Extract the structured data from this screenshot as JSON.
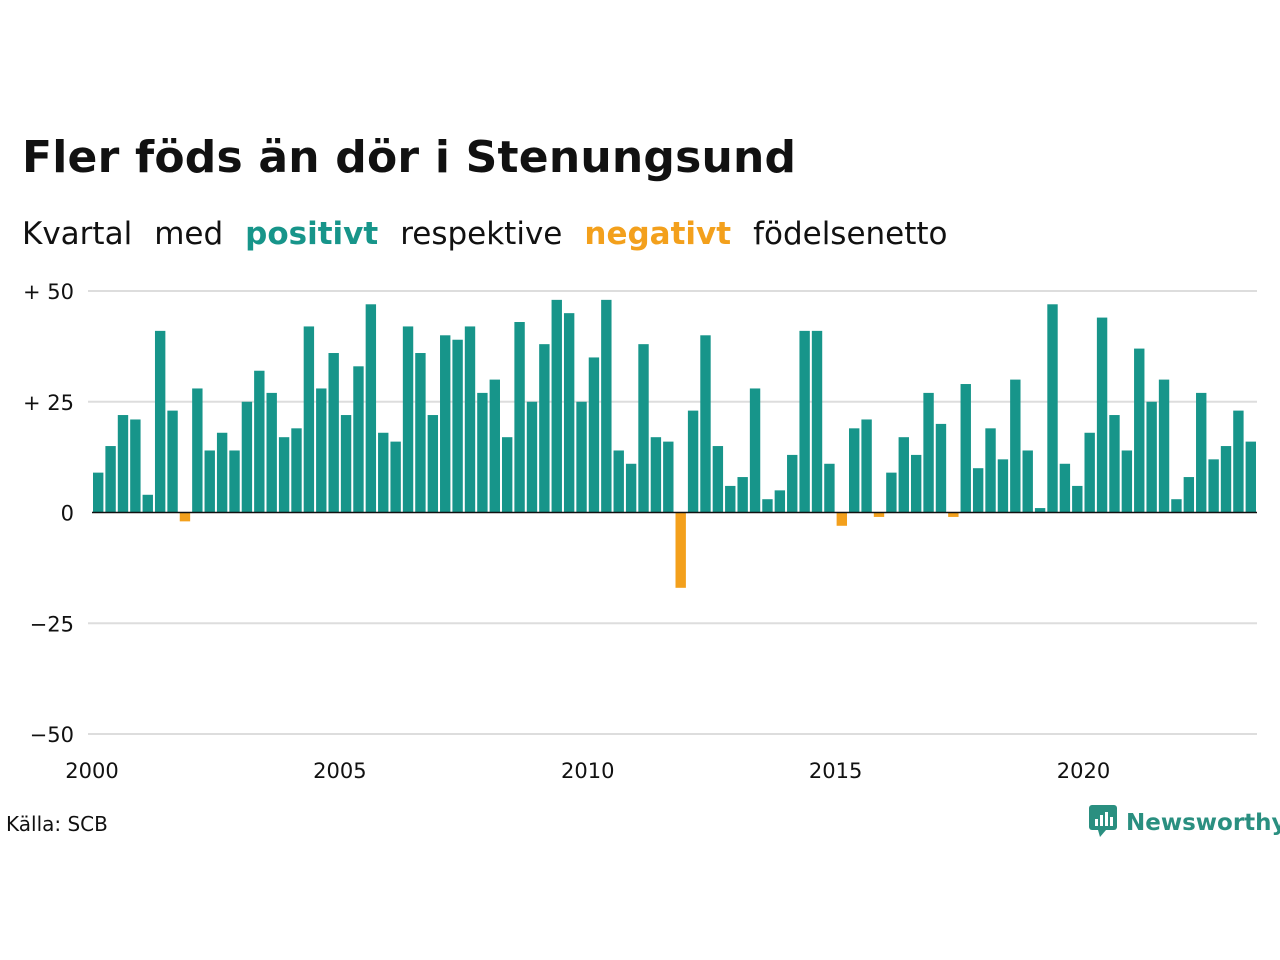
{
  "title": "Fler föds än dör i Stenungsund",
  "subtitle": {
    "w1": "Kvartal",
    "w2": "med",
    "pos": "positivt",
    "w3": "respektive",
    "neg": "negativt",
    "w4": "födelsenetto"
  },
  "source": "Källa: SCB",
  "brand": {
    "name": "Newsworthy",
    "logo_icon": "newsworthy-chart-bubble-icon"
  },
  "colors": {
    "positive": "#17958a",
    "negative": "#f3a01c",
    "grid": "#dddddd",
    "axis": "#111111"
  },
  "chart_data": {
    "type": "bar",
    "title": "Fler föds än dör i Stenungsund",
    "xlabel": "",
    "ylabel": "",
    "x_start": "2000 Q1",
    "x_ticks": [
      {
        "value": 2000,
        "label": "2000"
      },
      {
        "value": 2005,
        "label": "2005"
      },
      {
        "value": 2010,
        "label": "2010"
      },
      {
        "value": 2015,
        "label": "2015"
      },
      {
        "value": 2020,
        "label": "2020"
      }
    ],
    "y_ticks": [
      {
        "value": 50,
        "label": "+ 50"
      },
      {
        "value": 25,
        "label": "+ 25"
      },
      {
        "value": 0,
        "label": "0"
      },
      {
        "value": -25,
        "label": "−25"
      },
      {
        "value": -50,
        "label": "−50"
      }
    ],
    "ylim": [
      -50,
      50
    ],
    "grid": true,
    "values": [
      9,
      15,
      22,
      21,
      4,
      41,
      23,
      -2,
      28,
      14,
      18,
      14,
      25,
      32,
      27,
      17,
      19,
      42,
      28,
      36,
      22,
      33,
      47,
      18,
      16,
      42,
      36,
      22,
      40,
      39,
      42,
      27,
      30,
      17,
      43,
      25,
      38,
      48,
      45,
      25,
      35,
      48,
      14,
      11,
      38,
      17,
      16,
      -17,
      23,
      40,
      15,
      6,
      8,
      28,
      3,
      5,
      13,
      41,
      41,
      11,
      -3,
      19,
      21,
      -1,
      9,
      17,
      13,
      27,
      20,
      -1,
      29,
      10,
      19,
      12,
      30,
      14,
      1,
      47,
      11,
      6,
      18,
      44,
      22,
      14,
      37,
      25,
      30,
      3,
      8,
      27,
      12,
      15,
      23,
      16
    ]
  }
}
